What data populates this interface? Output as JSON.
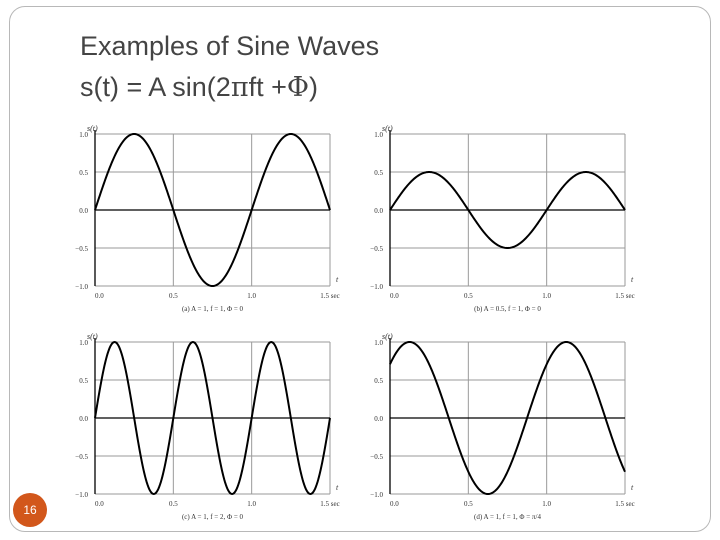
{
  "slide": {
    "title_line1": "Examples of Sine Waves",
    "title_line2_prefix": "s(t) = A sin(2",
    "title_line2_pi": "π",
    "title_line2_mid": "ft +",
    "title_line2_phi": "Φ",
    "title_line2_suffix": ")",
    "page_number": "16",
    "accent_color": "#d2571b"
  },
  "chart_data": [
    {
      "type": "line",
      "function": "s(t) = A sin(2πft + Φ)",
      "params": {
        "A": 1,
        "f": 1,
        "phi": 0
      },
      "ylabel": "s(t)",
      "xlabel": "t",
      "caption": "(a) A = 1, f = 1, Φ = 0",
      "xlim": [
        0,
        1.5
      ],
      "ylim": [
        -1.0,
        1.0
      ],
      "xticks": [
        "0.0",
        "0.5",
        "1.0",
        "1.5 sec"
      ],
      "yticks": [
        "1.0",
        "0.5",
        "0.0",
        "−0.5",
        "−1.0"
      ],
      "grid": true
    },
    {
      "type": "line",
      "function": "s(t) = A sin(2πft + Φ)",
      "params": {
        "A": 0.5,
        "f": 1,
        "phi": 0
      },
      "ylabel": "s(t)",
      "xlabel": "t",
      "caption": "(b) A = 0.5, f = 1, Φ = 0",
      "xlim": [
        0,
        1.5
      ],
      "ylim": [
        -1.0,
        1.0
      ],
      "xticks": [
        "0.0",
        "0.5",
        "1.0",
        "1.5 sec"
      ],
      "yticks": [
        "1.0",
        "0.5",
        "0.0",
        "−0.5",
        "−1.0"
      ],
      "grid": true
    },
    {
      "type": "line",
      "function": "s(t) = A sin(2πft + Φ)",
      "params": {
        "A": 1,
        "f": 2,
        "phi": 0
      },
      "ylabel": "s(t)",
      "xlabel": "t",
      "caption": "(c) A = 1, f = 2, Φ = 0",
      "xlim": [
        0,
        1.5
      ],
      "ylim": [
        -1.0,
        1.0
      ],
      "xticks": [
        "0.0",
        "0.5",
        "1.0",
        "1.5 sec"
      ],
      "yticks": [
        "1.0",
        "0.5",
        "0.0",
        "−0.5",
        "−1.0"
      ],
      "grid": true
    },
    {
      "type": "line",
      "function": "s(t) = A sin(2πft + Φ)",
      "params": {
        "A": 1,
        "f": 1,
        "phi": 0.785398
      },
      "ylabel": "s(t)",
      "xlabel": "t",
      "caption": "(d) A = 1, f = 1, Φ = π/4",
      "xlim": [
        0,
        1.5
      ],
      "ylim": [
        -1.0,
        1.0
      ],
      "xticks": [
        "0.0",
        "0.5",
        "1.0",
        "1.5 sec"
      ],
      "yticks": [
        "1.0",
        "0.5",
        "0.0",
        "−0.5",
        "−1.0"
      ],
      "grid": true
    }
  ]
}
